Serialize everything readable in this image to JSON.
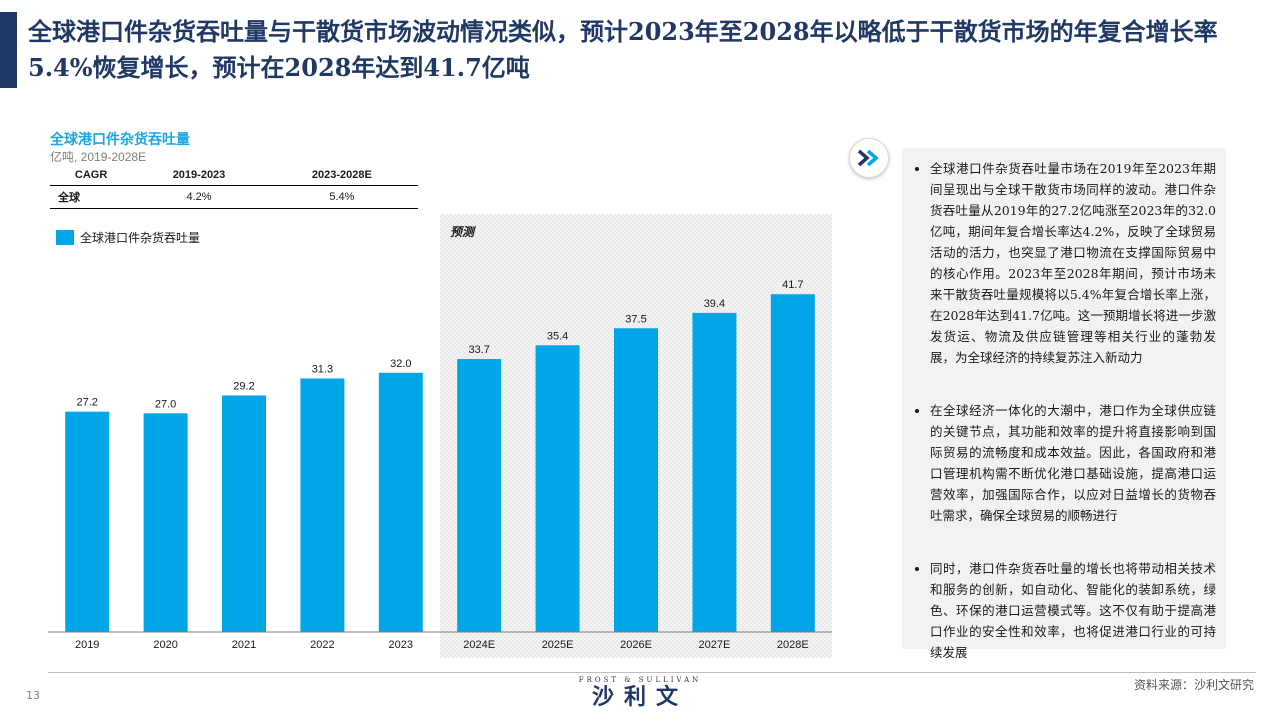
{
  "header": {
    "title": "全球港口件杂货吞吐量与干散货市场波动情况类似，预计2023年至2028年以略低于干散货市场的年复合增长率5.4%恢复增长，预计在2028年达到41.7亿吨"
  },
  "cagr_table": {
    "headers": [
      "CAGR",
      "2019-2023",
      "2023-2028E"
    ],
    "rows": [
      {
        "region": "全球",
        "v1": "4.2%",
        "v2": "5.4%"
      }
    ]
  },
  "colors": {
    "bar": "#00a6e8",
    "title_navy": "#1f3864",
    "chart_title": "#1aa6e0",
    "forecast_bg": "#f2f2f2"
  },
  "chart_data": {
    "type": "bar",
    "title": "全球港口件杂货吞吐量",
    "subtitle": "亿吨, 2019-2028E",
    "legend": [
      "全球港口件杂货吞吐量"
    ],
    "categories": [
      "2019",
      "2020",
      "2021",
      "2022",
      "2023",
      "2024E",
      "2025E",
      "2026E",
      "2027E",
      "2028E"
    ],
    "series": [
      {
        "name": "全球港口件杂货吞吐量",
        "values": [
          27.2,
          27.0,
          29.2,
          31.3,
          32.0,
          33.7,
          35.4,
          37.5,
          39.4,
          41.7
        ]
      }
    ],
    "value_labels": [
      "27.2",
      "27.0",
      "29.2",
      "31.3",
      "32.0",
      "33.7",
      "35.4",
      "37.5",
      "39.4",
      "41.7"
    ],
    "forecast_label": "预测",
    "forecast_start_index": 5,
    "ylim": [
      0,
      45
    ],
    "grid": false
  },
  "panel": {
    "bullets": [
      "全球港口件杂货吞吐量市场在2019年至2023年期间呈现出与全球干散货市场同样的波动。港口件杂货吞吐量从2019年的27.2亿吨涨至2023年的32.0亿吨，期间年复合增长率达4.2%，反映了全球贸易活动的活力，也突显了港口物流在支撑国际贸易中的核心作用。2023年至2028年期间，预计市场未来干散货吞吐量规模将以5.4%年复合增长率上涨，在2028年达到41.7亿吨。这一预期增长将进一步激发货运、物流及供应链管理等相关行业的蓬勃发展，为全球经济的持续复苏注入新动力",
      "在全球经济一体化的大潮中，港口作为全球供应链的关键节点，其功能和效率的提升将直接影响到国际贸易的流畅度和成本效益。因此，各国政府和港口管理机构需不断优化港口基础设施，提高港口运营效率，加强国际合作，以应对日益增长的货物吞吐需求，确保全球贸易的顺畅进行",
      "同时，港口件杂货吞吐量的增长也将带动相关技术和服务的创新，如自动化、智能化的装卸系统，绿色、环保的港口运营模式等。这不仅有助于提高港口作业的安全性和效率，也将促进港口行业的可持续发展"
    ]
  },
  "footer": {
    "page_number": "13",
    "logo_small": "FROST & SULLIVAN",
    "logo_big": "沙利文",
    "source": "资料来源：沙利文研究"
  }
}
